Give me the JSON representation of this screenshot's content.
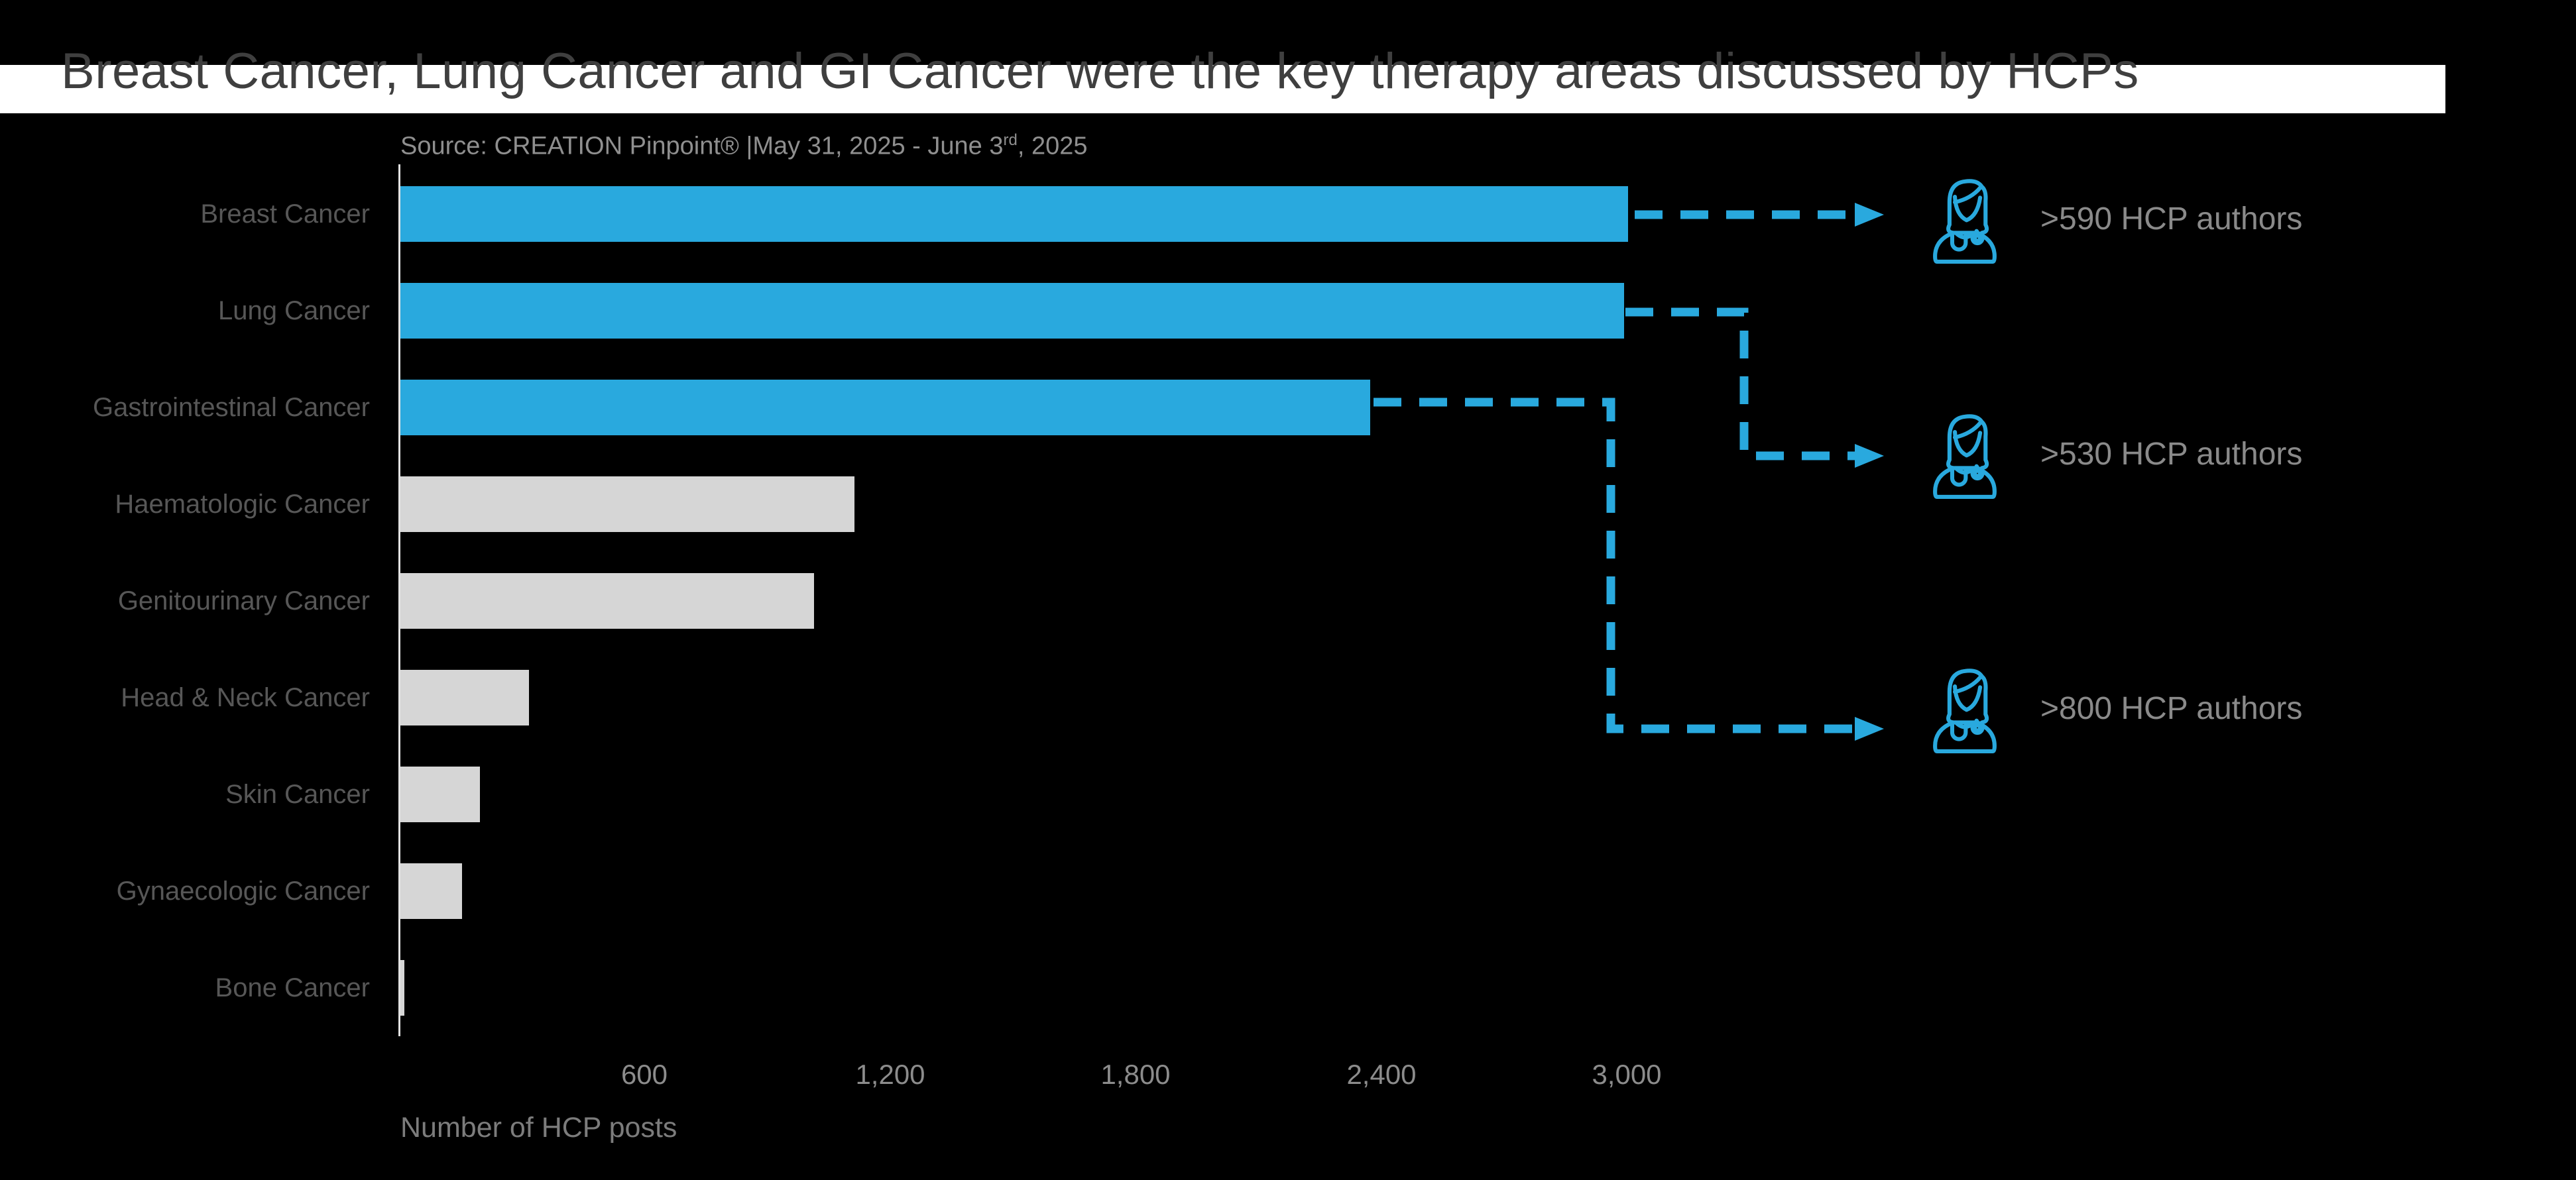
{
  "title": "Breast Cancer, Lung Cancer and GI Cancer were the key therapy areas discussed by HCPs",
  "source": {
    "prefix": "Source: CREATION Pinpoint® |May 31, 2025 - June 3",
    "superscript": "rd",
    "suffix": ", 2025"
  },
  "chart_data": {
    "type": "bar",
    "orientation": "horizontal",
    "title": "Breast Cancer, Lung Cancer and GI Cancer were the key therapy areas discussed by HCPs",
    "categories": [
      "Breast Cancer",
      "Lung Cancer",
      "Gastrointestinal Cancer",
      "Haematologic Cancer",
      "Genitourinary Cancer",
      "Head & Neck Cancer",
      "Skin Cancer",
      "Gynaecologic Cancer",
      "Bone Cancer"
    ],
    "values": [
      3000,
      2990,
      2370,
      1110,
      1010,
      315,
      195,
      150,
      10
    ],
    "highlighted": [
      true,
      true,
      true,
      false,
      false,
      false,
      false,
      false,
      false
    ],
    "xlabel": "Number of HCP posts",
    "ylabel": "",
    "xlim": [
      0,
      3300
    ],
    "xticks": [
      600,
      1200,
      1800,
      2400,
      3000
    ],
    "xtick_labels": [
      "600",
      "1,200",
      "1,800",
      "2,400",
      "3,000"
    ],
    "grid": false,
    "legend": false
  },
  "annotations": [
    {
      "icon": "female-doctor-icon",
      "label": ">590 HCP authors",
      "linked_bars": [
        "Breast Cancer"
      ]
    },
    {
      "icon": "female-doctor-icon",
      "label": ">530 HCP authors",
      "linked_bars": [
        "Lung Cancer"
      ]
    },
    {
      "icon": "female-doctor-icon",
      "label": ">800 HCP authors",
      "linked_bars": [
        "Gastrointestinal Cancer"
      ]
    }
  ],
  "colors": {
    "background": "#000000",
    "title_strip": "#FFFFFF",
    "title_text": "#3F3F3F",
    "accent_blue": "#29A9DE",
    "bar_gray": "#D6D6D6",
    "axis_line": "#E3E3E3",
    "category_label": "#575757",
    "muted_text": "#8C8C8C"
  }
}
